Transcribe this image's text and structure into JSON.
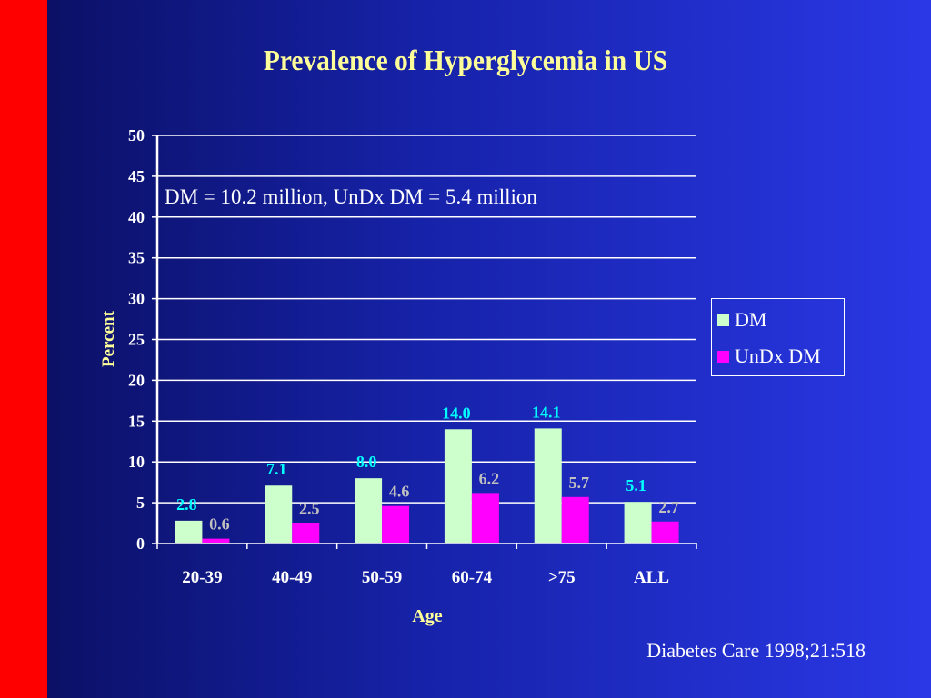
{
  "slide": {
    "title": "Prevalence of Hyperglycemia in US",
    "source": "Diabetes Care 1998;21:518",
    "background_color": "#1622a8",
    "accent_band_color": "#ff0000"
  },
  "chart_data": {
    "type": "bar",
    "title": "Prevalence of Hyperglycemia in US",
    "xlabel": "Age",
    "ylabel": "Percent",
    "ylim": [
      0,
      50
    ],
    "yticks": [
      0,
      5,
      10,
      15,
      20,
      25,
      30,
      35,
      40,
      45,
      50
    ],
    "grid": true,
    "legend_position": "right",
    "annotation": "DM = 10.2 million, UnDx DM = 5.4 million",
    "categories": [
      "20-39",
      "40-49",
      "50-59",
      "60-74",
      ">75",
      "ALL"
    ],
    "series": [
      {
        "name": "DM",
        "color": "#ccffcc",
        "label_color": "#00ffff",
        "values": [
          2.8,
          7.1,
          8.0,
          14.0,
          14.1,
          5.1
        ],
        "labels": [
          "2.8",
          "7.1",
          "8.0",
          "14.0",
          "14.1",
          "5.1"
        ]
      },
      {
        "name": "UnDx DM",
        "color": "#ff00ff",
        "label_color": "#c0c0c0",
        "values": [
          0.6,
          2.5,
          4.6,
          6.2,
          5.7,
          2.7
        ],
        "labels": [
          "0.6",
          "2.5",
          "4.6",
          "6.2",
          "5.7",
          "2.7"
        ]
      }
    ]
  }
}
